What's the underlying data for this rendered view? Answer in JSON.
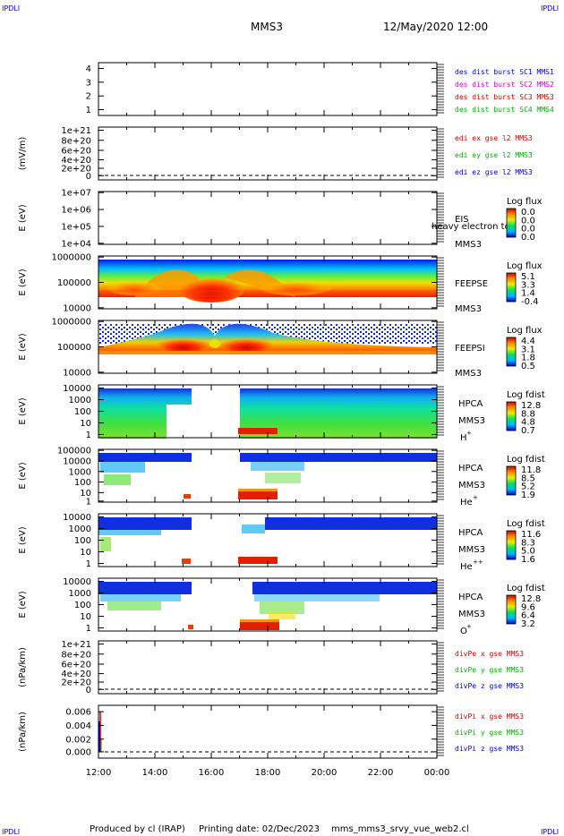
{
  "header": {
    "corner_tl": "IPDLI",
    "corner_tr": "IPDLI",
    "corner_bl": "IPDLI",
    "corner_br": "IPDLI",
    "spacecraft": "MMS3",
    "date": "12/May/2020 12:00"
  },
  "footer": {
    "produced": "Produced by cl (IRAP)",
    "printing": "Printing date: 02/Dec/2023",
    "file": "mms_mms3_srvy_vue_web2.cl"
  },
  "colors": {
    "blue": "#0000d0",
    "magenta": "#d000d0",
    "red": "#d00000",
    "green": "#00b000"
  },
  "chart_data": {
    "type": "heatmap",
    "xaxis": {
      "range": [
        "12:00",
        "00:00"
      ],
      "ticks": [
        "12:00",
        "14:00",
        "16:00",
        "18:00",
        "20:00",
        "22:00",
        "00:00"
      ]
    },
    "panels": [
      {
        "id": "p1",
        "kind": "line",
        "ylabel": "",
        "ticks": [
          "4",
          "3",
          "2",
          "1"
        ],
        "legend": [
          {
            "text": "des dist burst SC1 MMS1",
            "color": "blue"
          },
          {
            "text": "des dist burst SC2 MMS2",
            "color": "magenta"
          },
          {
            "text": "des dist burst SC3 MMS3",
            "color": "red"
          },
          {
            "text": "des dist burst SC4 MMS4",
            "color": "green"
          }
        ]
      },
      {
        "id": "p2",
        "kind": "line",
        "ylabel": "(mV/m)",
        "ticks": [
          "1e+21",
          "8e+20",
          "6e+20",
          "4e+20",
          "2e+20",
          "0"
        ],
        "legend": [
          {
            "text": "edi ex gse l2 MMS3",
            "color": "red"
          },
          {
            "text": "edi ey gse l2 MMS3",
            "color": "green"
          },
          {
            "text": "edi ez gse l2 MMS3",
            "color": "blue"
          }
        ]
      },
      {
        "id": "p3",
        "kind": "spectrogram",
        "ylabel": "E (eV)",
        "ticks": [
          "1e+07",
          "1e+06",
          "1e+05",
          "1e+04"
        ],
        "labels": [
          "EIS",
          "MMS3"
        ],
        "overlay": "heavy electron tof",
        "colorbar": {
          "title": "Log flux",
          "values": [
            "0.0",
            "0.0",
            "0.0",
            "0.0"
          ]
        }
      },
      {
        "id": "p4",
        "kind": "spectrogram",
        "ylabel": "E (eV)",
        "ticks": [
          "1000000",
          "100000",
          "10000"
        ],
        "labels": [
          "FEEPSE",
          "MMS3"
        ],
        "colorbar": {
          "title": "Log flux",
          "values": [
            "5.1",
            "3.3",
            "1.4",
            "-0.4"
          ]
        }
      },
      {
        "id": "p5",
        "kind": "spectrogram",
        "ylabel": "E (eV)",
        "ticks": [
          "1000000",
          "100000",
          "10000"
        ],
        "labels": [
          "FEEPSI",
          "MMS3"
        ],
        "colorbar": {
          "title": "Log flux",
          "values": [
            "4.4",
            "3.1",
            "1.8",
            "0.5"
          ]
        }
      },
      {
        "id": "p6",
        "kind": "spectrogram",
        "ylabel": "E (eV)",
        "ticks": [
          "10000",
          "1000",
          "100",
          "10",
          "1"
        ],
        "labels": [
          "HPCA",
          "MMS3"
        ],
        "species": "H",
        "charge": "+",
        "colorbar": {
          "title": "Log fdist",
          "values": [
            "12.8",
            "8.8",
            "4.8",
            "0.7"
          ]
        }
      },
      {
        "id": "p7",
        "kind": "spectrogram",
        "ylabel": "E (eV)",
        "ticks": [
          "100000",
          "10000",
          "1000",
          "100",
          "10",
          "1"
        ],
        "labels": [
          "HPCA",
          "MMS3"
        ],
        "species": "He",
        "charge": "+",
        "colorbar": {
          "title": "Log fdist",
          "values": [
            "11.8",
            "8.5",
            "5.2",
            "1.9"
          ]
        }
      },
      {
        "id": "p8",
        "kind": "spectrogram",
        "ylabel": "E (eV)",
        "ticks": [
          "10000",
          "1000",
          "100",
          "10",
          "1"
        ],
        "labels": [
          "HPCA",
          "MMS3"
        ],
        "species": "He",
        "charge": "++",
        "colorbar": {
          "title": "Log fdist",
          "values": [
            "11.6",
            "8.3",
            "5.0",
            "1.6"
          ]
        }
      },
      {
        "id": "p9",
        "kind": "spectrogram",
        "ylabel": "E (eV)",
        "ticks": [
          "10000",
          "1000",
          "100",
          "10",
          "1"
        ],
        "labels": [
          "HPCA",
          "MMS3"
        ],
        "species": "O",
        "charge": "+",
        "colorbar": {
          "title": "Log fdist",
          "values": [
            "12.8",
            "9.6",
            "6.4",
            "3.2"
          ]
        }
      },
      {
        "id": "p10",
        "kind": "line",
        "ylabel": "(nPa/km)",
        "ticks": [
          "1e+21",
          "8e+20",
          "6e+20",
          "4e+20",
          "2e+20",
          "0"
        ],
        "legend": [
          {
            "text": "divPe x gse MMS3",
            "color": "red"
          },
          {
            "text": "divPe y gse MMS3",
            "color": "green"
          },
          {
            "text": "divPe z gse MMS3",
            "color": "blue"
          }
        ]
      },
      {
        "id": "p11",
        "kind": "line",
        "ylabel": "(nPa/km)",
        "ticks": [
          "0.006",
          "0.004",
          "0.002",
          "0.000"
        ],
        "legend": [
          {
            "text": "divPi x gse MMS3",
            "color": "red"
          },
          {
            "text": "divPi y gse MMS3",
            "color": "green"
          },
          {
            "text": "divPi z gse MMS3",
            "color": "blue"
          }
        ]
      }
    ]
  }
}
